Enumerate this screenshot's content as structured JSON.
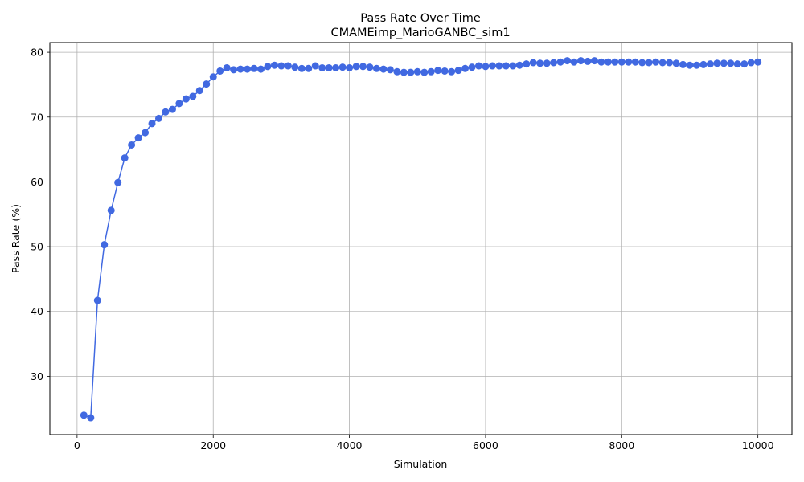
{
  "chart_data": {
    "type": "line",
    "title": "Pass Rate Over Time",
    "subtitle": "CMAMEimp_MarioGANBC_sim1",
    "xlabel": "Simulation",
    "ylabel": "Pass Rate (%)",
    "xlim": [
      -400,
      10500
    ],
    "ylim": [
      21,
      81.5
    ],
    "xticks": [
      0,
      2000,
      4000,
      6000,
      8000,
      10000
    ],
    "yticks": [
      30,
      40,
      50,
      60,
      70,
      80
    ],
    "xtick_labels": [
      "0",
      "2000",
      "4000",
      "6000",
      "8000",
      "10000"
    ],
    "ytick_labels": [
      "30",
      "40",
      "50",
      "60",
      "70",
      "80"
    ],
    "grid": true,
    "marker": "circle",
    "color": "#4169e1",
    "series": [
      {
        "x": [
          100,
          200,
          300,
          400,
          500,
          600,
          700,
          800,
          900,
          1000,
          1100,
          1200,
          1300,
          1400,
          1500,
          1600,
          1700,
          1800,
          1900,
          2000,
          2100,
          2200,
          2300,
          2400,
          2500,
          2600,
          2700,
          2800,
          2900,
          3000,
          3100,
          3200,
          3300,
          3400,
          3500,
          3600,
          3700,
          3800,
          3900,
          4000,
          4100,
          4200,
          4300,
          4400,
          4500,
          4600,
          4700,
          4800,
          4900,
          5000,
          5100,
          5200,
          5300,
          5400,
          5500,
          5600,
          5700,
          5800,
          5900,
          6000,
          6100,
          6200,
          6300,
          6400,
          6500,
          6600,
          6700,
          6800,
          6900,
          7000,
          7100,
          7200,
          7300,
          7400,
          7500,
          7600,
          7700,
          7800,
          7900,
          8000,
          8100,
          8200,
          8300,
          8400,
          8500,
          8600,
          8700,
          8800,
          8900,
          9000,
          9100,
          9200,
          9300,
          9400,
          9500,
          9600,
          9700,
          9800,
          9900,
          10000
        ],
        "values": [
          24.0,
          23.6,
          41.7,
          50.3,
          55.6,
          59.9,
          63.7,
          65.7,
          66.8,
          67.6,
          69.0,
          69.8,
          70.8,
          71.2,
          72.1,
          72.8,
          73.2,
          74.1,
          75.1,
          76.2,
          77.1,
          77.6,
          77.3,
          77.4,
          77.4,
          77.5,
          77.4,
          77.8,
          78.0,
          77.9,
          77.9,
          77.7,
          77.5,
          77.5,
          77.9,
          77.6,
          77.6,
          77.6,
          77.7,
          77.6,
          77.8,
          77.8,
          77.7,
          77.5,
          77.4,
          77.3,
          77.0,
          76.9,
          76.9,
          77.0,
          76.9,
          77.0,
          77.2,
          77.1,
          77.0,
          77.2,
          77.5,
          77.7,
          77.9,
          77.8,
          77.9,
          77.9,
          77.9,
          77.9,
          78.0,
          78.2,
          78.4,
          78.3,
          78.3,
          78.4,
          78.5,
          78.7,
          78.5,
          78.7,
          78.6,
          78.7,
          78.5,
          78.5,
          78.5,
          78.5,
          78.5,
          78.5,
          78.4,
          78.4,
          78.5,
          78.4,
          78.4,
          78.3,
          78.1,
          78.0,
          78.0,
          78.1,
          78.2,
          78.3,
          78.3,
          78.3,
          78.2,
          78.2,
          78.4,
          78.5
        ]
      }
    ]
  }
}
